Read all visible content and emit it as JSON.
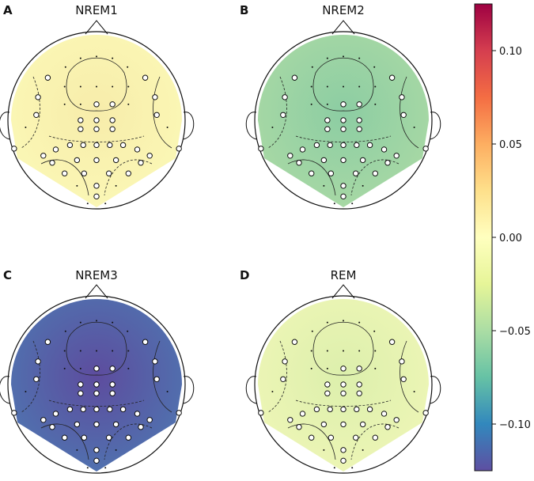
{
  "panels": [
    {
      "letter": "A",
      "title": "NREM1",
      "fill": "#fbf8b6",
      "fill_deep": "#f7ecaa"
    },
    {
      "letter": "B",
      "title": "NREM2",
      "fill": "#a9d9a4",
      "fill_deep": "#8ccda3"
    },
    {
      "letter": "C",
      "title": "NREM3",
      "fill": "#4f74b0",
      "fill_deep": "#5d4c9e"
    },
    {
      "letter": "D",
      "title": "REM",
      "fill": "#eef6b6",
      "fill_deep": "#dcefac"
    }
  ],
  "colorbar": {
    "ticks": [
      "0.10",
      "0.05",
      "0.00",
      "−0.05",
      "−0.10"
    ],
    "stops": [
      "#9e0142",
      "#d53e4f",
      "#f46d43",
      "#fdae61",
      "#fee08b",
      "#ffffbf",
      "#e6f598",
      "#abdda4",
      "#66c2a5",
      "#3288bd",
      "#5e4fa2"
    ]
  }
}
